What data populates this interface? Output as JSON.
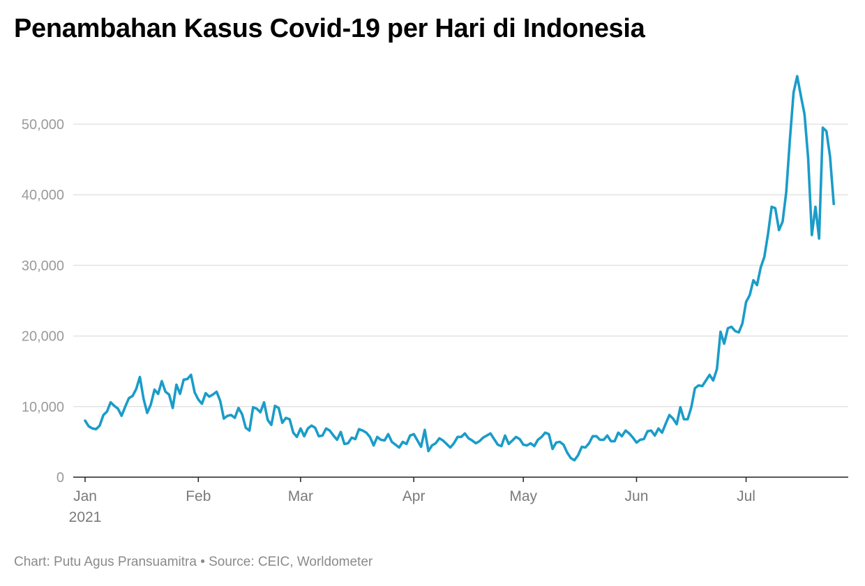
{
  "title": "Penambahan Kasus Covid-19 per Hari di Indonesia",
  "footer": "Chart: Putu Agus Pransuamitra • Source: CEIC, Worldometer",
  "colors": {
    "line": "#1a9cc8",
    "grid": "#e3e3e3",
    "axis": "#222222"
  },
  "chart_data": {
    "type": "line",
    "xlabel": "",
    "ylabel": "",
    "ylim": [
      0,
      57000
    ],
    "yticks": [
      0,
      10000,
      20000,
      30000,
      40000,
      50000
    ],
    "ytick_labels": [
      "0",
      "10,000",
      "20,000",
      "30,000",
      "40,000",
      "50,000"
    ],
    "xticks": [
      "2021-01-01",
      "2021-02-01",
      "2021-03-01",
      "2021-04-01",
      "2021-05-01",
      "2021-06-01",
      "2021-07-01"
    ],
    "xtick_labels": [
      "Jan",
      "Feb",
      "Mar",
      "Apr",
      "May",
      "Jun",
      "Jul"
    ],
    "xtick_sublabels": [
      "2021",
      "",
      "",
      "",
      "",
      "",
      ""
    ],
    "grid": true,
    "legend": "none",
    "series": [
      {
        "start_date": "2021-01-01",
        "values": [
          8000,
          7200,
          6900,
          6800,
          7300,
          8800,
          9300,
          10600,
          10100,
          9700,
          8700,
          10000,
          11200,
          11500,
          12500,
          14200,
          11100,
          9100,
          10300,
          12400,
          11800,
          13600,
          12100,
          11700,
          9800,
          13100,
          11800,
          13800,
          13900,
          14500,
          12000,
          11000,
          10400,
          11900,
          11400,
          11700,
          12100,
          10800,
          8300,
          8700,
          8800,
          8400,
          9800,
          8900,
          7000,
          6600,
          9900,
          9700,
          9200,
          10600,
          8100,
          7400,
          10100,
          9800,
          7700,
          8400,
          8200,
          6300,
          5700,
          6900,
          5800,
          6900,
          7300,
          7000,
          5800,
          5900,
          6900,
          6600,
          5900,
          5300,
          6400,
          4700,
          4800,
          5600,
          5400,
          6800,
          6600,
          6300,
          5700,
          4500,
          5700,
          5300,
          5200,
          6100,
          5000,
          4600,
          4200,
          5000,
          4700,
          5900,
          6100,
          5200,
          4300,
          6700,
          3700,
          4500,
          4800,
          5500,
          5200,
          4700,
          4200,
          4800,
          5700,
          5700,
          6200,
          5500,
          5200,
          4800,
          5100,
          5600,
          5900,
          6200,
          5400,
          4600,
          4400,
          5900,
          4700,
          5200,
          5700,
          5400,
          4600,
          4500,
          4800,
          4400,
          5300,
          5700,
          6300,
          6100,
          4000,
          4900,
          5000,
          4600,
          3500,
          2700,
          2400,
          3100,
          4300,
          4200,
          4800,
          5800,
          5800,
          5300,
          5300,
          5900,
          5100,
          5100,
          6300,
          5800,
          6600,
          6200,
          5600,
          4900,
          5300,
          5400,
          6500,
          6600,
          5900,
          6900,
          6300,
          7600,
          8800,
          8300,
          7500,
          9900,
          8200,
          8200,
          9900,
          12600,
          13000,
          12900,
          13700,
          14500,
          13700,
          15300,
          20600,
          18900,
          21100,
          21300,
          20700,
          20500,
          21800,
          24800,
          25800,
          27900,
          27200,
          29700,
          31200,
          34400,
          38300,
          38100,
          35000,
          36200,
          40400,
          47900,
          54500,
          56800,
          54000,
          51400,
          45200,
          34300,
          38300,
          33800,
          49500,
          49000,
          45400,
          38700
        ]
      }
    ]
  }
}
